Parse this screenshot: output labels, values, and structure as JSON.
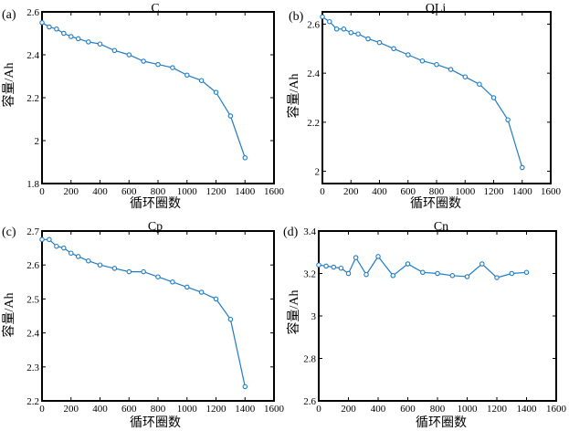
{
  "chart_data": [
    {
      "panel": "(a)",
      "type": "line",
      "title": "C",
      "xlabel": "循环圈数",
      "ylabel": "容量/Ah",
      "xlim": [
        0,
        1600
      ],
      "ylim": [
        1.8,
        2.6
      ],
      "xticks": [
        "0",
        "200",
        "400",
        "600",
        "800",
        "1000",
        "1200",
        "1400",
        "1600"
      ],
      "yticks": [
        "1.8",
        "2",
        "2.2",
        "2.4",
        "2.6"
      ],
      "x": [
        0,
        50,
        100,
        150,
        200,
        250,
        320,
        400,
        500,
        600,
        700,
        800,
        900,
        1000,
        1100,
        1200,
        1300,
        1400
      ],
      "y": [
        2.55,
        2.53,
        2.52,
        2.5,
        2.485,
        2.475,
        2.46,
        2.45,
        2.42,
        2.4,
        2.37,
        2.355,
        2.34,
        2.305,
        2.28,
        2.225,
        2.115,
        1.92
      ]
    },
    {
      "panel": "(b)",
      "type": "line",
      "title": "QLi",
      "xlabel": "循环圈数",
      "ylabel": "容量/Ah",
      "xlim": [
        0,
        1600
      ],
      "ylim": [
        1.95,
        2.65
      ],
      "xticks": [
        "0",
        "200",
        "400",
        "600",
        "800",
        "1000",
        "1200",
        "1400",
        "1600"
      ],
      "yticks": [
        "2",
        "2.2",
        "2.4",
        "2.6"
      ],
      "x": [
        0,
        50,
        100,
        150,
        200,
        250,
        320,
        400,
        500,
        600,
        700,
        800,
        900,
        1000,
        1100,
        1200,
        1300,
        1400
      ],
      "y": [
        2.63,
        2.61,
        2.58,
        2.58,
        2.565,
        2.56,
        2.54,
        2.525,
        2.5,
        2.475,
        2.45,
        2.435,
        2.415,
        2.385,
        2.355,
        2.3,
        2.21,
        2.015
      ]
    },
    {
      "panel": "(c)",
      "type": "line",
      "title": "Cp",
      "xlabel": "循环圈数",
      "ylabel": "容量/Ah",
      "xlim": [
        0,
        1600
      ],
      "ylim": [
        2.2,
        2.7
      ],
      "xticks": [
        "0",
        "200",
        "400",
        "600",
        "800",
        "1000",
        "1200",
        "1400",
        "1600"
      ],
      "yticks": [
        "2.2",
        "2.3",
        "2.4",
        "2.5",
        "2.6",
        "2.7"
      ],
      "x": [
        0,
        50,
        100,
        150,
        200,
        250,
        320,
        400,
        500,
        600,
        700,
        800,
        900,
        1000,
        1100,
        1200,
        1300,
        1400
      ],
      "y": [
        2.675,
        2.675,
        2.655,
        2.65,
        2.635,
        2.625,
        2.612,
        2.6,
        2.59,
        2.58,
        2.58,
        2.565,
        2.55,
        2.535,
        2.52,
        2.5,
        2.44,
        2.242
      ]
    },
    {
      "panel": "(d)",
      "type": "line",
      "title": "Cn",
      "xlabel": "循环圈数",
      "ylabel": "容量/Ah",
      "xlim": [
        0,
        1600
      ],
      "ylim": [
        2.6,
        3.4
      ],
      "xticks": [
        "0",
        "200",
        "400",
        "600",
        "800",
        "1000",
        "1200",
        "1400",
        "1600"
      ],
      "yticks": [
        "2.6",
        "2.8",
        "3",
        "3.2",
        "3.4"
      ],
      "x": [
        0,
        50,
        100,
        150,
        200,
        250,
        320,
        400,
        500,
        600,
        700,
        800,
        900,
        1000,
        1100,
        1200,
        1300,
        1400
      ],
      "y": [
        3.24,
        3.235,
        3.23,
        3.225,
        3.2,
        3.275,
        3.195,
        3.28,
        3.19,
        3.245,
        3.205,
        3.2,
        3.19,
        3.185,
        3.245,
        3.18,
        3.2,
        3.205
      ]
    }
  ]
}
